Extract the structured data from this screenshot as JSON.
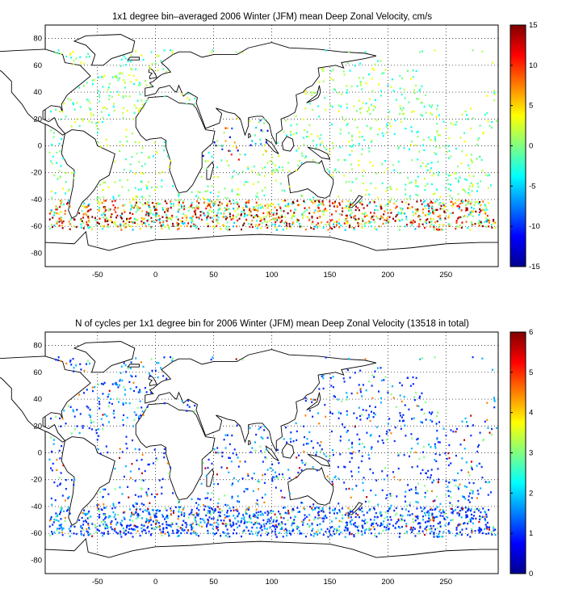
{
  "chart_data": [
    {
      "type": "heatmap",
      "title": "1x1 degree bin–averaged 2006 Winter (JFM) mean Deep Zonal Velocity, cm/s",
      "xlim": [
        -95,
        295
      ],
      "ylim": [
        -90,
        90
      ],
      "x_ticks": [
        -50,
        0,
        50,
        100,
        150,
        200,
        250
      ],
      "y_ticks": [
        80,
        60,
        40,
        20,
        0,
        -20,
        -40,
        -60,
        -80
      ],
      "grid": true,
      "grid_style": "dotted",
      "colorbar": {
        "min": -15,
        "max": 15,
        "ticks": [
          15,
          10,
          5,
          0,
          -5,
          -10,
          -15
        ],
        "colormap": "jet",
        "placement": "right"
      },
      "basemap": "coastlines",
      "data_summary": "Scattered 1x1 degree bins; mostly near-zero values (cyan/green), strong eastward (red/orange) values along ~45S-60S Southern Ocean band, mixed values in Indian Ocean equatorial region"
    },
    {
      "type": "heatmap",
      "title": "N of cycles per 1x1 degree bin for 2006 Winter (JFM) mean Deep Zonal Velocity (13518 in total)",
      "xlim": [
        -95,
        295
      ],
      "ylim": [
        -90,
        90
      ],
      "x_ticks": [
        -50,
        0,
        50,
        100,
        150,
        200,
        250
      ],
      "y_ticks": [
        80,
        60,
        40,
        20,
        0,
        -20,
        -40,
        -60,
        -80
      ],
      "grid": true,
      "grid_style": "dotted",
      "colorbar": {
        "min": 0,
        "max": 6,
        "ticks": [
          6,
          5,
          4,
          3,
          2,
          1,
          0
        ],
        "colormap": "jet",
        "placement": "right"
      },
      "basemap": "coastlines",
      "data_summary": "Mostly 1-2 cycles per bin (blue), occasional 3-6 (green-red) scattered in Indian and Pacific Oceans"
    }
  ]
}
